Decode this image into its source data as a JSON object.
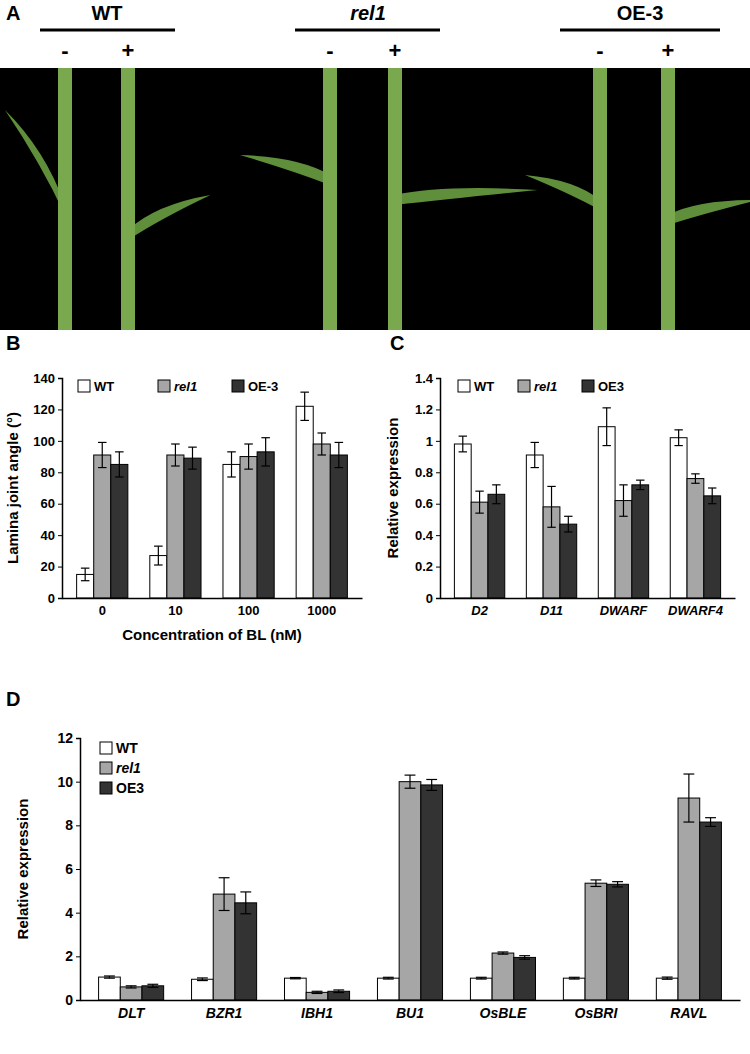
{
  "panel_a": {
    "title": "A",
    "groups": [
      {
        "label": "WT",
        "treatments": [
          "-",
          "+"
        ]
      },
      {
        "label": "rel1",
        "treatments": [
          "-",
          "+"
        ]
      },
      {
        "label": "OE-3",
        "treatments": [
          "-",
          "+"
        ]
      }
    ]
  },
  "chart_data": [
    {
      "type": "bar",
      "title": "B",
      "xlabel": "Concentration of BL (nM)",
      "ylabel": "Lamina joint angle (°)",
      "categories": [
        "0",
        "10",
        "100",
        "1000"
      ],
      "series": [
        {
          "name": "WT",
          "color": "#ffffff",
          "values": [
            15,
            27,
            85,
            122
          ],
          "errors": [
            4,
            6,
            8,
            9
          ]
        },
        {
          "name": "rel1",
          "color": "#a6a6a6",
          "values": [
            91,
            91,
            90,
            98
          ],
          "errors": [
            8,
            7,
            8,
            7
          ]
        },
        {
          "name": "OE-3",
          "color": "#333333",
          "values": [
            85,
            89,
            93,
            91
          ],
          "errors": [
            8,
            7,
            9,
            8
          ]
        }
      ],
      "ylim": [
        0,
        140
      ],
      "yticks": [
        0,
        20,
        40,
        60,
        80,
        100,
        120,
        140
      ],
      "legend": "top-left"
    },
    {
      "type": "bar",
      "title": "C",
      "ylabel": "Relative expression",
      "categories": [
        "D2",
        "D11",
        "DWARF",
        "DWARF4"
      ],
      "series": [
        {
          "name": "WT",
          "color": "#ffffff",
          "values": [
            0.98,
            0.91,
            1.09,
            1.02
          ],
          "errors": [
            0.05,
            0.08,
            0.12,
            0.05
          ]
        },
        {
          "name": "rel1",
          "color": "#a6a6a6",
          "values": [
            0.61,
            0.58,
            0.62,
            0.76
          ],
          "errors": [
            0.07,
            0.13,
            0.1,
            0.03
          ]
        },
        {
          "name": "OE3",
          "color": "#333333",
          "values": [
            0.66,
            0.47,
            0.72,
            0.65
          ],
          "errors": [
            0.06,
            0.05,
            0.03,
            0.05
          ]
        }
      ],
      "ylim": [
        0,
        1.4
      ],
      "yticks": [
        0,
        0.2,
        0.4,
        0.6,
        0.8,
        1,
        1.2,
        1.4
      ],
      "legend": "top-left"
    },
    {
      "type": "bar",
      "title": "D",
      "ylabel": "Relative expression",
      "categories": [
        "DLT",
        "BZR1",
        "IBH1",
        "BU1",
        "OsBLE",
        "OsBRI",
        "RAVL"
      ],
      "series": [
        {
          "name": "WT",
          "color": "#ffffff",
          "values": [
            1.05,
            0.95,
            1.0,
            1.0,
            1.0,
            1.0,
            1.0
          ],
          "errors": [
            0.05,
            0.06,
            0.03,
            0.04,
            0.04,
            0.04,
            0.05
          ]
        },
        {
          "name": "rel1",
          "color": "#a6a6a6",
          "values": [
            0.6,
            4.85,
            0.35,
            10.0,
            2.15,
            5.35,
            9.25
          ],
          "errors": [
            0.05,
            0.75,
            0.05,
            0.3,
            0.05,
            0.15,
            1.1
          ]
        },
        {
          "name": "OE3",
          "color": "#333333",
          "values": [
            0.65,
            4.45,
            0.4,
            9.85,
            1.95,
            5.3,
            8.15
          ],
          "errors": [
            0.07,
            0.5,
            0.06,
            0.25,
            0.08,
            0.12,
            0.2
          ]
        }
      ],
      "ylim": [
        0,
        12
      ],
      "yticks": [
        0,
        2,
        4,
        6,
        8,
        10,
        12
      ],
      "legend": "top-left"
    }
  ]
}
